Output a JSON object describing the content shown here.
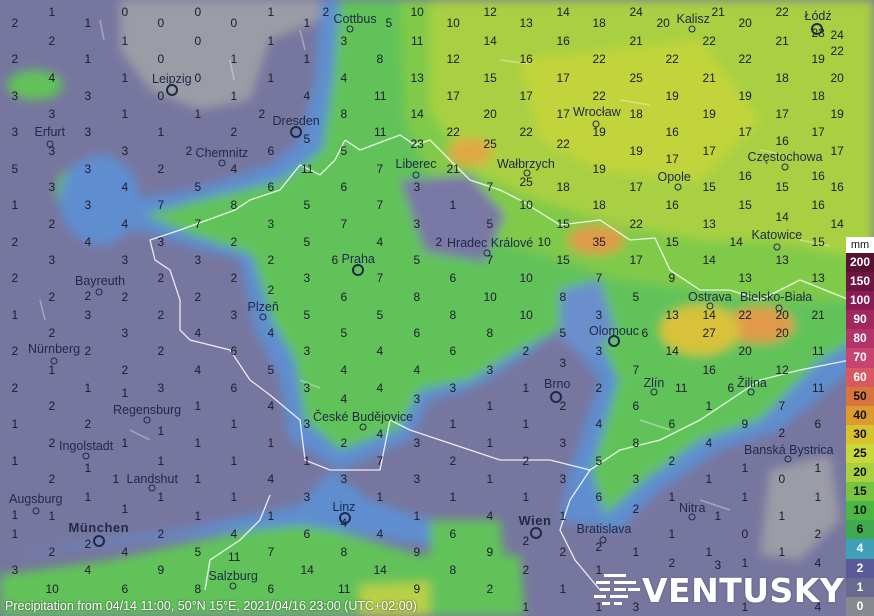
{
  "status_text": "Precipitation from 04/14 11:00, 50°N 15°E, 2021/04/16 23:00 (UTC+02:00)",
  "logo_text": "VENTUSKY",
  "legend": {
    "unit": "mm",
    "items": [
      {
        "label": "200",
        "color": "#5a1030",
        "text": "#ffffff"
      },
      {
        "label": "150",
        "color": "#6e1440",
        "text": "#ffffff"
      },
      {
        "label": "100",
        "color": "#8a1a55",
        "text": "#ffffff"
      },
      {
        "label": "90",
        "color": "#a0285e",
        "text": "#ffffff"
      },
      {
        "label": "80",
        "color": "#b43368",
        "text": "#ffffff"
      },
      {
        "label": "70",
        "color": "#c84470",
        "text": "#ffffff"
      },
      {
        "label": "60",
        "color": "#d85a60",
        "text": "#ffffff"
      },
      {
        "label": "50",
        "color": "#d8743e",
        "text": "#111111"
      },
      {
        "label": "40",
        "color": "#dc9a30",
        "text": "#111111"
      },
      {
        "label": "30",
        "color": "#d8c230",
        "text": "#111111"
      },
      {
        "label": "25",
        "color": "#c8d83a",
        "text": "#111111"
      },
      {
        "label": "20",
        "color": "#a8d040",
        "text": "#111111"
      },
      {
        "label": "15",
        "color": "#78c440",
        "text": "#111111"
      },
      {
        "label": "10",
        "color": "#4cb844",
        "text": "#111111"
      },
      {
        "label": "6",
        "color": "#40aa50",
        "text": "#111111"
      },
      {
        "label": "4",
        "color": "#3fa0b8",
        "text": "#ffffff"
      },
      {
        "label": "2",
        "color": "#5a5a9a",
        "text": "#ffffff"
      },
      {
        "label": "1",
        "color": "#6a6a90",
        "text": "#ffffff"
      },
      {
        "label": "0",
        "color": "#888890",
        "text": "#ffffff"
      }
    ]
  },
  "cities": [
    {
      "name": "Cottbus"
    },
    {
      "name": "Leipzig"
    },
    {
      "name": "Dresden"
    },
    {
      "name": "Erfurt"
    },
    {
      "name": "Chemnitz"
    },
    {
      "name": "Liberec"
    },
    {
      "name": "Wałbrzych"
    },
    {
      "name": "Wrocław"
    },
    {
      "name": "Kalisz"
    },
    {
      "name": "Łódź"
    },
    {
      "name": "Opole"
    },
    {
      "name": "Częstochowa"
    },
    {
      "name": "Hradec Králové"
    },
    {
      "name": "Katowice"
    },
    {
      "name": "Praha"
    },
    {
      "name": "Bayreuth"
    },
    {
      "name": "Plzeň"
    },
    {
      "name": "Ostrava"
    },
    {
      "name": "Bielsko-Biała"
    },
    {
      "name": "Olomouc"
    },
    {
      "name": "Nürnberg"
    },
    {
      "name": "Zlín"
    },
    {
      "name": "Žilina"
    },
    {
      "name": "Brno"
    },
    {
      "name": "Regensburg"
    },
    {
      "name": "České Budějovice"
    },
    {
      "name": "Ingolstadt"
    },
    {
      "name": "Banská Bystrica"
    },
    {
      "name": "Landshut"
    },
    {
      "name": "Augsburg"
    },
    {
      "name": "Linz"
    },
    {
      "name": "Nitra"
    },
    {
      "name": "München"
    },
    {
      "name": "Wien"
    },
    {
      "name": "Bratislava"
    },
    {
      "name": "Salzburg"
    }
  ],
  "precipitation_grid_mm": [
    [
      1,
      0,
      0,
      1,
      2,
      10,
      12,
      14,
      24,
      21,
      22,
      24
    ],
    [
      2,
      1,
      0,
      0,
      1,
      5,
      10,
      13,
      18,
      20,
      20,
      23
    ],
    [
      2,
      1,
      0,
      1,
      3,
      11,
      14,
      16,
      21,
      22,
      21,
      22
    ],
    [
      2,
      1,
      0,
      1,
      1,
      8,
      12,
      16,
      22,
      22,
      22,
      19
    ],
    [
      4,
      1,
      0,
      1,
      4,
      13,
      15,
      17,
      25,
      21,
      18,
      20
    ],
    [
      3,
      3,
      0,
      1,
      4,
      11,
      17,
      17,
      22,
      19,
      19,
      18
    ],
    [
      3,
      1,
      1,
      2,
      8,
      14,
      20,
      17,
      18,
      19,
      17,
      19
    ],
    [
      3,
      3,
      1,
      2,
      5,
      11,
      22,
      22,
      19,
      16,
      17,
      17
    ],
    [
      3,
      3,
      2,
      6,
      5,
      23,
      25,
      22,
      19,
      17,
      16,
      17
    ],
    [
      5,
      3,
      2,
      4,
      11,
      7,
      21,
      25,
      19,
      17,
      16,
      16
    ],
    [
      3,
      4,
      5,
      6,
      6,
      3,
      7,
      18,
      17,
      15,
      15,
      16
    ],
    [
      1,
      3,
      7,
      8,
      5,
      7,
      1,
      10,
      18,
      16,
      15,
      16
    ],
    [
      2,
      4,
      7,
      3,
      7,
      3,
      5,
      15,
      22,
      13,
      14,
      14
    ],
    [
      2,
      4,
      3,
      2,
      5,
      4,
      2,
      10,
      35,
      15,
      14,
      15
    ],
    [
      3,
      3,
      3,
      2,
      6,
      5,
      7,
      15,
      17,
      14,
      13,
      null
    ],
    [
      2,
      2,
      2,
      2,
      3,
      7,
      6,
      10,
      7,
      9,
      13,
      13
    ],
    [
      2,
      2,
      2,
      2,
      6,
      8,
      10,
      8,
      5,
      14,
      20,
      null
    ],
    [
      1,
      3,
      2,
      3,
      5,
      5,
      8,
      10,
      3,
      13,
      22,
      21
    ],
    [
      2,
      3,
      4,
      4,
      5,
      6,
      8,
      5,
      6,
      27,
      20,
      null
    ],
    [
      2,
      2,
      2,
      6,
      3,
      4,
      6,
      2,
      3,
      14,
      20,
      11
    ],
    [
      1,
      2,
      4,
      5,
      4,
      4,
      3,
      3,
      7,
      16,
      12,
      null
    ],
    [
      2,
      1,
      3,
      6,
      3,
      4,
      3,
      1,
      2,
      11,
      6,
      11
    ],
    [
      2,
      1,
      1,
      4,
      4,
      3,
      1,
      2,
      6,
      1,
      7,
      null
    ],
    [
      1,
      2,
      1,
      1,
      3,
      4,
      1,
      1,
      4,
      6,
      9,
      6
    ],
    [
      2,
      1,
      1,
      1,
      2,
      3,
      1,
      3,
      8,
      4,
      2,
      null
    ],
    [
      1,
      1,
      1,
      1,
      1,
      7,
      2,
      2,
      5,
      2,
      1,
      1
    ],
    [
      2,
      1,
      1,
      4,
      3,
      3,
      1,
      3,
      3,
      1,
      0,
      null
    ],
    [
      1,
      1,
      1,
      1,
      3,
      1,
      1,
      1,
      6,
      1,
      1,
      1
    ],
    [
      1,
      1,
      1,
      1,
      4,
      1,
      4,
      1,
      2,
      1,
      1,
      null
    ],
    [
      1,
      2,
      2,
      4,
      6,
      4,
      6,
      2,
      2,
      1,
      0,
      2
    ],
    [
      2,
      4,
      5,
      7,
      8,
      9,
      9,
      2,
      1,
      1,
      1,
      null
    ],
    [
      3,
      4,
      9,
      11,
      14,
      14,
      8,
      2,
      1,
      2,
      1,
      4
    ],
    [
      10,
      6,
      8,
      6,
      11,
      9,
      2,
      1,
      null,
      3,
      null,
      null
    ],
    [
      null,
      null,
      null,
      null,
      null,
      null,
      null,
      1,
      1,
      3,
      1,
      4
    ]
  ]
}
